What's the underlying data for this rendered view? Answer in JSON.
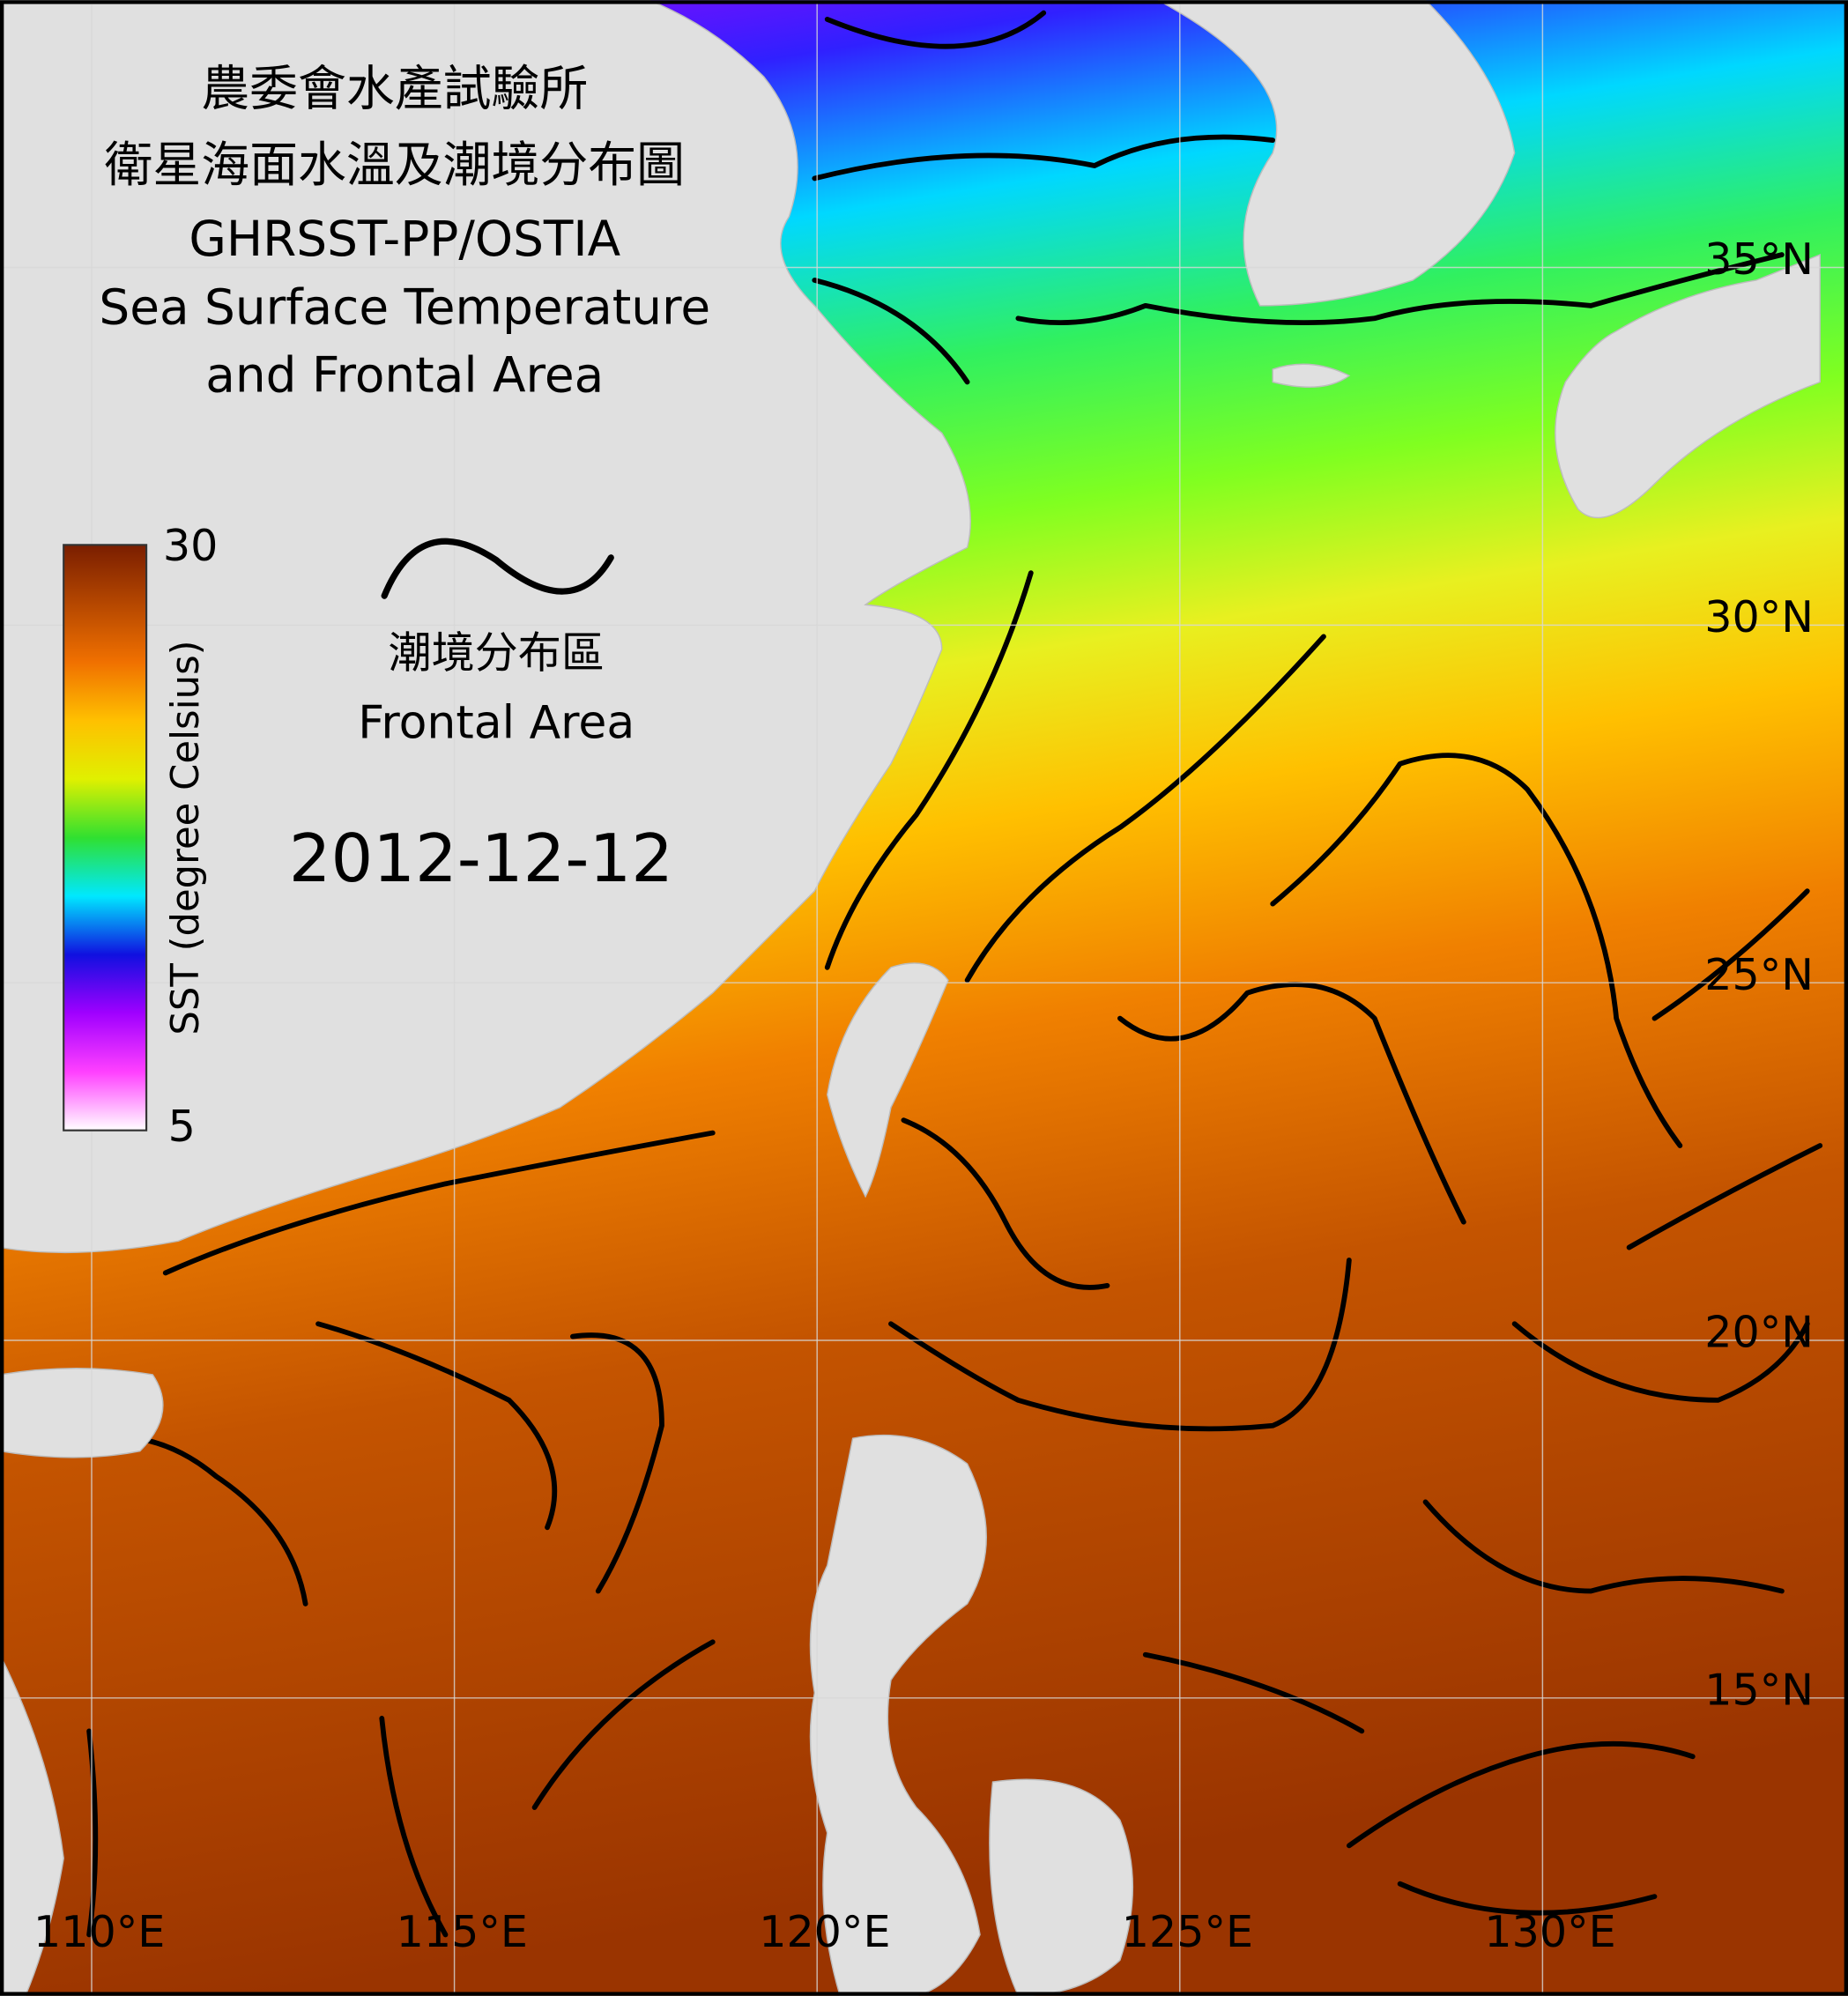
{
  "title_lines": [
    "農委會水產試驗所",
    "衛星海面水溫及潮境分布圖",
    "GHRSST-PP/OSTIA",
    "Sea Surface Temperature",
    "and Frontal Area"
  ],
  "colorbar": {
    "label": "SST (degree Celsius)",
    "max": 30,
    "min": 5
  },
  "legend": {
    "label_zh": "潮境分布區",
    "label_en": "Frontal Area"
  },
  "date": "2012-12-12",
  "lat_labels": [
    {
      "value": 35,
      "label": "35°N"
    },
    {
      "value": 30,
      "label": "30°N"
    },
    {
      "value": 25,
      "label": "25°N"
    },
    {
      "value": 20,
      "label": "20°N"
    },
    {
      "value": 15,
      "label": "15°N"
    }
  ],
  "lon_labels": [
    {
      "value": 110,
      "label": "110°E"
    },
    {
      "value": 115,
      "label": "115°E"
    },
    {
      "value": 120,
      "label": "120°E"
    },
    {
      "value": 125,
      "label": "125°E"
    },
    {
      "value": 130,
      "label": "130°E"
    }
  ]
}
